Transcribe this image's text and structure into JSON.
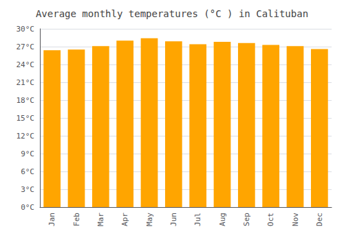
{
  "chart_data": {
    "type": "bar",
    "title": "Average monthly temperatures (°C ) in Calituban",
    "categories": [
      "Jan",
      "Feb",
      "Mar",
      "Apr",
      "May",
      "Jun",
      "Jul",
      "Aug",
      "Sep",
      "Oct",
      "Nov",
      "Dec"
    ],
    "values": [
      26.4,
      26.5,
      27.1,
      28.0,
      28.4,
      27.9,
      27.4,
      27.8,
      27.6,
      27.3,
      27.1,
      26.6
    ],
    "color": "#FFA500",
    "ylim": [
      0,
      30
    ],
    "yticks": [
      {
        "value": 0,
        "label": "0°C"
      },
      {
        "value": 3,
        "label": "3°C"
      },
      {
        "value": 6,
        "label": "6°C"
      },
      {
        "value": 9,
        "label": "9°C"
      },
      {
        "value": 12,
        "label": "12°C"
      },
      {
        "value": 15,
        "label": "15°C"
      },
      {
        "value": 18,
        "label": "18°C"
      },
      {
        "value": 21,
        "label": "21°C"
      },
      {
        "value": 24,
        "label": "24°C"
      },
      {
        "value": 27,
        "label": "27°C"
      },
      {
        "value": 30,
        "label": "30°C"
      }
    ],
    "grid": true
  }
}
